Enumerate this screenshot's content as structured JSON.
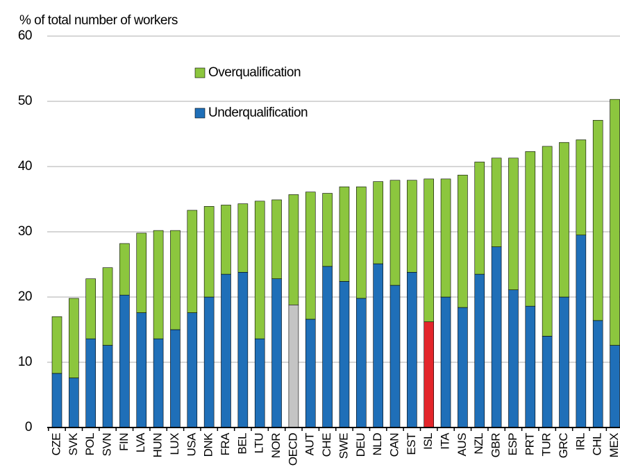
{
  "chart_data": {
    "type": "stacked_bar",
    "y_axis_label": "% of total number of workers",
    "categories": [
      "CZE",
      "SVK",
      "POL",
      "SVN",
      "FIN",
      "LVA",
      "HUN",
      "LUX",
      "USA",
      "DNK",
      "FRA",
      "BEL",
      "LTU",
      "NOR",
      "OECD",
      "AUT",
      "CHE",
      "SWE",
      "DEU",
      "NLD",
      "CAN",
      "EST",
      "ISL",
      "ITA",
      "AUS",
      "NZL",
      "GBR",
      "ESP",
      "PRT",
      "TUR",
      "GRC",
      "IRL",
      "CHL",
      "MEX"
    ],
    "series": [
      {
        "name": "Underqualification",
        "color": "#1f6fb8",
        "colors": [
          "#1f6fb8",
          "#1f6fb8",
          "#1f6fb8",
          "#1f6fb8",
          "#1f6fb8",
          "#1f6fb8",
          "#1f6fb8",
          "#1f6fb8",
          "#1f6fb8",
          "#1f6fb8",
          "#1f6fb8",
          "#1f6fb8",
          "#1f6fb8",
          "#1f6fb8",
          "#c4c4c4",
          "#1f6fb8",
          "#1f6fb8",
          "#1f6fb8",
          "#1f6fb8",
          "#1f6fb8",
          "#1f6fb8",
          "#1f6fb8",
          "#e3262b",
          "#1f6fb8",
          "#1f6fb8",
          "#1f6fb8",
          "#1f6fb8",
          "#1f6fb8",
          "#1f6fb8",
          "#1f6fb8",
          "#1f6fb8",
          "#1f6fb8",
          "#1f6fb8",
          "#1f6fb8"
        ],
        "values": [
          8.3,
          7.6,
          13.6,
          12.6,
          20.3,
          17.6,
          13.6,
          15,
          17.6,
          20,
          23.5,
          23.8,
          13.6,
          22.8,
          18.8,
          16.6,
          24.7,
          22.4,
          19.8,
          25.1,
          21.8,
          23.8,
          16.2,
          20,
          18.4,
          23.5,
          27.7,
          21.1,
          18.6,
          14,
          20,
          29.5,
          16.4,
          12.6
        ]
      },
      {
        "name": "Overqualification",
        "color": "#8cc63e",
        "values": [
          8.7,
          12.2,
          9.2,
          11.9,
          7.9,
          12.2,
          16.6,
          15.2,
          15.7,
          13.9,
          10.6,
          10.5,
          21.1,
          12.1,
          16.9,
          19.5,
          11.2,
          14.5,
          17.1,
          12.6,
          16.1,
          14.1,
          21.9,
          18.1,
          20.3,
          17.2,
          13.6,
          20.2,
          23.7,
          29.1,
          23.7,
          14.6,
          30.7,
          37.7
        ]
      }
    ],
    "ylim": [
      0,
      60
    ],
    "yticks": [
      0,
      10,
      20,
      30,
      40,
      50,
      60
    ],
    "grid": true
  }
}
